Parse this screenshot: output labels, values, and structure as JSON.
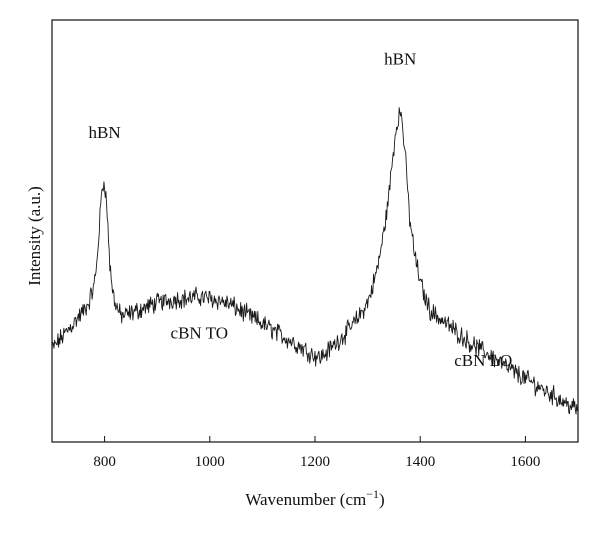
{
  "chart_data": {
    "type": "line",
    "title": "",
    "xlabel": "Wavenumber (cm",
    "xlabel_sup": "−1",
    "xlabel_close": ")",
    "ylabel": "Intensity (a.u.)",
    "xlim": [
      700,
      1700
    ],
    "ylim": [
      0,
      1
    ],
    "y_ticks_shown": false,
    "grid": false,
    "line_color": "#1a1a1a",
    "x_ticks": [
      {
        "value": 800,
        "label": "800"
      },
      {
        "value": 1000,
        "label": "1000"
      },
      {
        "value": 1200,
        "label": "1200"
      },
      {
        "value": 1400,
        "label": "1400"
      },
      {
        "value": 1600,
        "label": "1600"
      }
    ],
    "annotations": [
      {
        "text": "hBN",
        "x": 800,
        "y": 0.72
      },
      {
        "text": "hBN",
        "x": 1362,
        "y": 0.895
      },
      {
        "text": "cBN TO",
        "x": 980,
        "y": 0.245
      },
      {
        "text": "cBN LO",
        "x": 1520,
        "y": 0.18
      }
    ],
    "series": [
      {
        "x": [
          700,
          720,
          740,
          760,
          770,
          780,
          785,
          790,
          795,
          800,
          805,
          810,
          815,
          820,
          830,
          840,
          860,
          880,
          900,
          920,
          940,
          960,
          980,
          1000,
          1020,
          1040,
          1060,
          1080,
          1100,
          1120,
          1140,
          1160,
          1180,
          1200,
          1210,
          1220,
          1240,
          1260,
          1280,
          1300,
          1310,
          1320,
          1330,
          1340,
          1345,
          1350,
          1355,
          1360,
          1365,
          1370,
          1375,
          1380,
          1390,
          1400,
          1410,
          1420,
          1440,
          1460,
          1480,
          1500,
          1520,
          1540,
          1560,
          1580,
          1600,
          1620,
          1640,
          1660,
          1680,
          1700
        ],
        "values": [
          0.22,
          0.25,
          0.28,
          0.31,
          0.33,
          0.37,
          0.42,
          0.51,
          0.6,
          0.62,
          0.54,
          0.42,
          0.36,
          0.33,
          0.3,
          0.3,
          0.31,
          0.32,
          0.33,
          0.335,
          0.34,
          0.34,
          0.345,
          0.34,
          0.335,
          0.325,
          0.31,
          0.295,
          0.28,
          0.265,
          0.25,
          0.235,
          0.22,
          0.205,
          0.2,
          0.21,
          0.235,
          0.26,
          0.29,
          0.33,
          0.37,
          0.42,
          0.49,
          0.58,
          0.64,
          0.7,
          0.75,
          0.78,
          0.77,
          0.7,
          0.62,
          0.53,
          0.44,
          0.38,
          0.34,
          0.31,
          0.29,
          0.27,
          0.25,
          0.23,
          0.215,
          0.2,
          0.18,
          0.165,
          0.15,
          0.135,
          0.12,
          0.105,
          0.09,
          0.075
        ]
      }
    ]
  }
}
